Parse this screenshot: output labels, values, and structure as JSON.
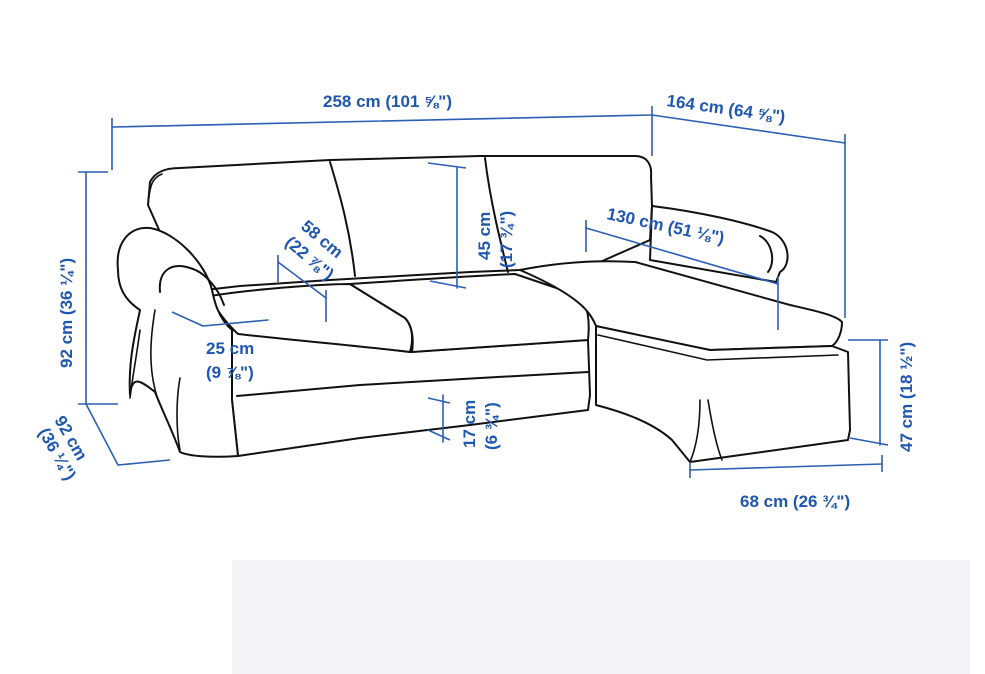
{
  "colors": {
    "dimension": "#2b5fb3",
    "outline": "#111111",
    "background": "#ffffff"
  },
  "dimensions": {
    "total_width": "258 cm (101 ⅝\")",
    "chaise_length": "164 cm (64 ⅝\")",
    "total_height": "92 cm (36 ¼\")",
    "depth_line1": "92 cm",
    "depth_line2": "(36 ¼\")",
    "seat_depth_line1": "58 cm",
    "seat_depth_line2": "(22 ⅞\")",
    "back_height_line1": "45 cm",
    "back_height_line2": "(17 ¾\")",
    "chaise_seat_depth": "130 cm (51 ⅛\")",
    "armrest_line1": "25 cm",
    "armrest_line2": "(9 ⅞\")",
    "free_height_line1": "17 cm",
    "free_height_line2": "(6 ¾\")",
    "seat_height": "47 cm (18 ½\")",
    "chaise_width": "68 cm (26 ¾\")"
  }
}
